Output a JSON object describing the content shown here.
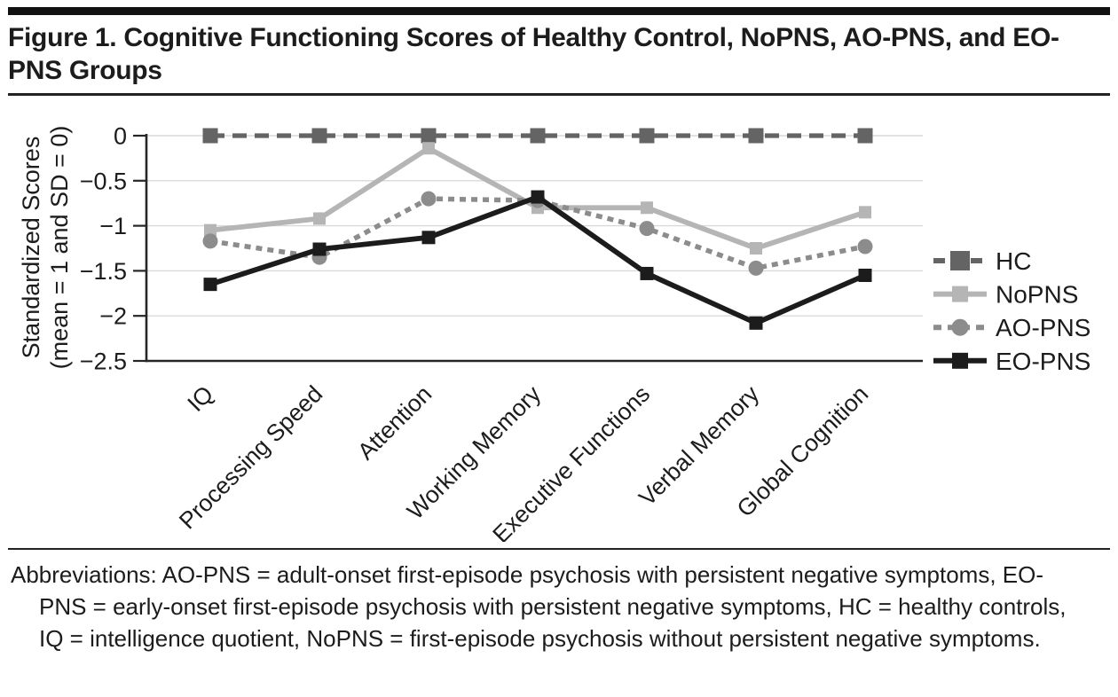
{
  "figure": {
    "title": "Figure 1. Cognitive Functioning Scores of Healthy Control, NoPNS, AO-PNS, and EO-PNS Groups",
    "abbreviations": "Abbreviations: AO-PNS = adult-onset first-episode psychosis with persistent negative symptoms, EO-PNS = early-onset first-episode psychosis with persistent negative symptoms, HC = healthy controls, IQ = intelligence quotient, NoPNS = first-episode psychosis without persistent negative symptoms.",
    "text_color": "#1c1c1c",
    "rule_color": "#222222"
  },
  "chart_data": {
    "type": "line",
    "title": "",
    "xlabel": "",
    "ylabel_line1": "Standardized Scores",
    "ylabel_line2": "(mean = 1 and SD = 0)",
    "ylim": [
      -2.5,
      0
    ],
    "yticks": [
      0,
      -0.5,
      -1,
      -1.5,
      -2,
      -2.5
    ],
    "ytick_labels": [
      "0",
      "−0.5",
      "−1",
      "−1.5",
      "−2",
      "−2.5"
    ],
    "grid": true,
    "legend_position": "right",
    "categories": [
      "IQ",
      "Processing Speed",
      "Attention",
      "Working Memory",
      "Executive Functions",
      "Verbal Memory",
      "Global Cognition"
    ],
    "series": [
      {
        "name": "HC",
        "values": [
          0,
          0,
          0,
          0,
          0,
          0,
          0
        ],
        "color": "#646464",
        "line_style": "dashed",
        "marker": "square"
      },
      {
        "name": "NoPNS",
        "values": [
          -1.05,
          -0.92,
          -0.14,
          -0.8,
          -0.8,
          -1.25,
          -0.85
        ],
        "color": "#b5b5b5",
        "line_style": "solid",
        "marker": "square"
      },
      {
        "name": "AO-PNS",
        "values": [
          -1.17,
          -1.35,
          -0.7,
          -0.72,
          -1.03,
          -1.47,
          -1.23
        ],
        "color": "#8c8c8c",
        "line_style": "dotted",
        "marker": "circle"
      },
      {
        "name": "EO-PNS",
        "values": [
          -1.65,
          -1.26,
          -1.13,
          -0.68,
          -1.53,
          -2.08,
          -1.55
        ],
        "color": "#1c1c1c",
        "line_style": "solid",
        "marker": "square"
      }
    ],
    "gridline_color": "#d9d9d9",
    "axis_color": "#262626"
  }
}
